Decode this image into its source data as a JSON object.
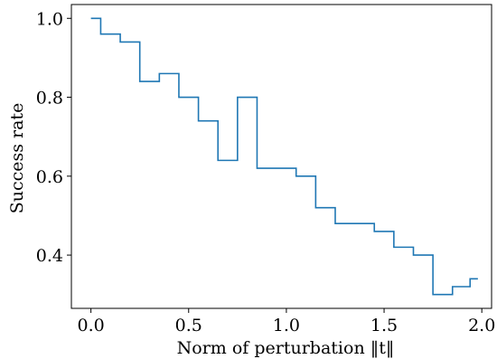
{
  "chart_data": {
    "type": "line",
    "step": "mid",
    "xlabel": "Norm of perturbation ‖t‖",
    "ylabel": "Success rate",
    "xlim": [
      -0.1,
      2.05
    ],
    "ylim": [
      0.265,
      1.035
    ],
    "xticks": [
      0.0,
      0.5,
      1.0,
      1.5,
      2.0
    ],
    "xtick_labels": [
      "0.0",
      "0.5",
      "1.0",
      "1.5",
      "2.0"
    ],
    "yticks": [
      0.4,
      0.6,
      0.8,
      1.0
    ],
    "ytick_labels": [
      "0.4",
      "0.6",
      "0.8",
      "1.0"
    ],
    "grid": false,
    "color": "#1f77b4",
    "series": [
      {
        "x": [
          0.0,
          0.1,
          0.2,
          0.3,
          0.4,
          0.5,
          0.6,
          0.7,
          0.8,
          0.9,
          1.0,
          1.1,
          1.2,
          1.3,
          1.4,
          1.5,
          1.6,
          1.7,
          1.8,
          1.9,
          1.98
        ],
        "y": [
          1.0,
          0.96,
          0.94,
          0.84,
          0.86,
          0.8,
          0.74,
          0.64,
          0.8,
          0.62,
          0.62,
          0.6,
          0.52,
          0.48,
          0.48,
          0.46,
          0.42,
          0.4,
          0.3,
          0.32,
          0.34
        ]
      }
    ]
  }
}
